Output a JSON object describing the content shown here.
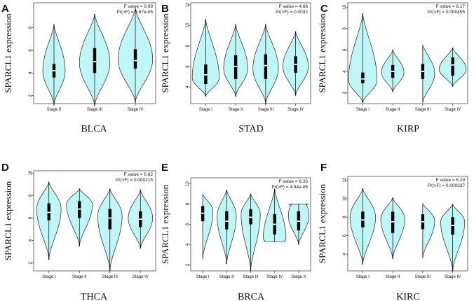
{
  "figure": {
    "colors": {
      "violin_fill": "#bff7f7",
      "outline": "#222222",
      "box": "#000000",
      "median": "#ffffff"
    }
  },
  "chart_data": [
    {
      "type": "violin",
      "panel_letter": "A",
      "caption": "BLCA",
      "ylabel": "SPARCL1 expression",
      "ylim": [
        1.3,
        10.2
      ],
      "yticks": [
        2,
        4,
        6,
        8
      ],
      "f_value": "F value = 9.99",
      "p_value": "Pr(>F) = 5.87e-05",
      "categories": [
        "Stage II",
        "Stage III",
        "Stage IV"
      ],
      "series": [
        {
          "name": "Stage II",
          "min": 1.2,
          "q1": 3.6,
          "median": 4.2,
          "q3": 4.8,
          "max": 8.3,
          "peak": 4.2,
          "width": 0.55
        },
        {
          "name": "Stage III",
          "min": 1.1,
          "q1": 4.0,
          "median": 5.0,
          "q3": 6.2,
          "max": 9.2,
          "peak": 4.9,
          "width": 0.75
        },
        {
          "name": "Stage IV",
          "min": 1.4,
          "q1": 4.4,
          "median": 5.1,
          "q3": 6.1,
          "max": 9.7,
          "peak": 5.2,
          "width": 0.85
        }
      ]
    },
    {
      "type": "violin",
      "panel_letter": "B",
      "caption": "STAD",
      "ylabel": "SPARCL1 expression",
      "ylim": [
        2.4,
        12.2
      ],
      "yticks": [
        4,
        6,
        8,
        10,
        12
      ],
      "f_value": "F value = 4.68",
      "p_value": "Pr(>F) = 0.0032",
      "categories": [
        "Stage I",
        "Stage II",
        "Stage III",
        "Stage IV"
      ],
      "series": [
        {
          "name": "Stage I",
          "min": 3.1,
          "q1": 4.3,
          "median": 5.2,
          "q3": 6.2,
          "max": 10.6,
          "peak": 4.9,
          "width": 0.9
        },
        {
          "name": "Stage II",
          "min": 3.1,
          "q1": 4.8,
          "median": 6.0,
          "q3": 7.1,
          "max": 10.1,
          "peak": 5.8,
          "width": 0.8
        },
        {
          "name": "Stage III",
          "min": 2.4,
          "q1": 4.8,
          "median": 6.1,
          "q3": 7.2,
          "max": 10.1,
          "peak": 5.8,
          "width": 0.85
        },
        {
          "name": "Stage IV",
          "min": 3.2,
          "q1": 5.4,
          "median": 6.2,
          "q3": 7.0,
          "max": 9.4,
          "peak": 6.0,
          "width": 0.85
        }
      ]
    },
    {
      "type": "violin",
      "panel_letter": "C",
      "caption": "KIRP",
      "ylabel": "SPARCL1 expression",
      "ylim": [
        1.0,
        10.4
      ],
      "yticks": [
        2,
        4,
        6,
        8,
        10
      ],
      "f_value": "F value = 6.17",
      "p_value": "Pr(>F) = 0.000455",
      "categories": [
        "Stage I",
        "Stage II",
        "Stage III",
        "Stage IV"
      ],
      "series": [
        {
          "name": "Stage I",
          "min": 1.1,
          "q1": 2.9,
          "median": 3.3,
          "q3": 3.9,
          "max": 9.4,
          "peak": 3.2,
          "width": 0.95
        },
        {
          "name": "Stage II",
          "min": 2.1,
          "q1": 3.4,
          "median": 4.0,
          "q3": 4.6,
          "max": 6.0,
          "peak": 3.9,
          "width": 0.75
        },
        {
          "name": "Stage III",
          "min": 1.1,
          "q1": 3.3,
          "median": 4.0,
          "q3": 4.7,
          "max": 6.5,
          "peak": 3.8,
          "width": 0.8
        },
        {
          "name": "Stage IV",
          "min": 2.6,
          "q1": 3.6,
          "median": 4.6,
          "q3": 5.3,
          "max": 6.2,
          "peak": 4.2,
          "width": 0.9
        }
      ]
    },
    {
      "type": "violin",
      "panel_letter": "D",
      "caption": "THCA",
      "ylabel": "SPARCL1 expression",
      "ylim": [
        1.3,
        10.2
      ],
      "yticks": [
        2,
        4,
        6,
        8,
        10
      ],
      "f_value": "F value = 6.62",
      "p_value": "Pr(>F) = 0.000215",
      "categories": [
        "Stage I",
        "Stage II",
        "Stage III",
        "Stage IV"
      ],
      "series": [
        {
          "name": "Stage I",
          "min": 2.3,
          "q1": 5.8,
          "median": 6.5,
          "q3": 7.3,
          "max": 9.2,
          "peak": 6.8,
          "width": 0.8
        },
        {
          "name": "Stage II",
          "min": 3.5,
          "q1": 6.0,
          "median": 6.8,
          "q3": 7.5,
          "max": 8.6,
          "peak": 7.2,
          "width": 0.85
        },
        {
          "name": "Stage III",
          "min": 1.3,
          "q1": 5.0,
          "median": 6.0,
          "q3": 6.8,
          "max": 8.6,
          "peak": 6.2,
          "width": 0.8
        },
        {
          "name": "Stage IV",
          "min": 3.3,
          "q1": 5.2,
          "median": 5.9,
          "q3": 6.6,
          "max": 8.5,
          "peak": 6.0,
          "width": 0.8
        }
      ]
    },
    {
      "type": "violin",
      "panel_letter": "E",
      "caption": "BRCA",
      "ylabel": "SPARCL1 expression",
      "ylim": [
        1.4,
        10.6
      ],
      "yticks": [
        2,
        4,
        6,
        8,
        10
      ],
      "f_value": "F value = 6.33",
      "p_value": "Pr(>F) = 4.94e-05",
      "categories": [
        "Stage I",
        "Stage II",
        "Stage III",
        "Stage IV",
        "Stage X"
      ],
      "series": [
        {
          "name": "Stage I",
          "min": 2.6,
          "q1": 6.3,
          "median": 7.1,
          "q3": 7.8,
          "max": 9.0,
          "peak": 7.3,
          "width": 0.85
        },
        {
          "name": "Stage II",
          "min": 2.1,
          "q1": 5.5,
          "median": 6.3,
          "q3": 7.3,
          "max": 9.4,
          "peak": 6.8,
          "width": 0.8
        },
        {
          "name": "Stage III",
          "min": 1.4,
          "q1": 6.0,
          "median": 6.7,
          "q3": 7.5,
          "max": 9.0,
          "peak": 7.0,
          "width": 0.8
        },
        {
          "name": "Stage IV",
          "min": 4.3,
          "q1": 5.0,
          "median": 6.0,
          "q3": 7.0,
          "max": 9.5,
          "peak": 4.6,
          "width": 0.95,
          "flat_bottom": true
        },
        {
          "name": "Stage X",
          "min": 4.0,
          "q1": 5.4,
          "median": 6.3,
          "q3": 7.3,
          "max": 8.0,
          "peak": 6.8,
          "width": 0.85,
          "flat_top": true
        }
      ]
    },
    {
      "type": "violin",
      "panel_letter": "F",
      "caption": "KIRC",
      "ylabel": "SPARCL1 expression",
      "ylim": [
        2.2,
        12.4
      ],
      "yticks": [
        4,
        6,
        8,
        10,
        12
      ],
      "f_value": "F value = 6.29",
      "p_value": "Pr(>F) = 0.000337",
      "categories": [
        "Stage I",
        "Stage II",
        "Stage III",
        "Stage IV"
      ],
      "series": [
        {
          "name": "Stage I",
          "min": 2.9,
          "q1": 6.9,
          "median": 7.7,
          "q3": 8.6,
          "max": 11.1,
          "peak": 8.0,
          "width": 0.85
        },
        {
          "name": "Stage II",
          "min": 3.5,
          "q1": 6.3,
          "median": 7.5,
          "q3": 8.6,
          "max": 10.1,
          "peak": 7.8,
          "width": 0.8
        },
        {
          "name": "Stage III",
          "min": 3.6,
          "q1": 6.7,
          "median": 7.5,
          "q3": 8.3,
          "max": 9.5,
          "peak": 7.6,
          "width": 0.8
        },
        {
          "name": "Stage IV",
          "min": 2.2,
          "q1": 6.1,
          "median": 7.1,
          "q3": 8.0,
          "max": 9.4,
          "peak": 7.5,
          "width": 0.8
        }
      ]
    }
  ]
}
